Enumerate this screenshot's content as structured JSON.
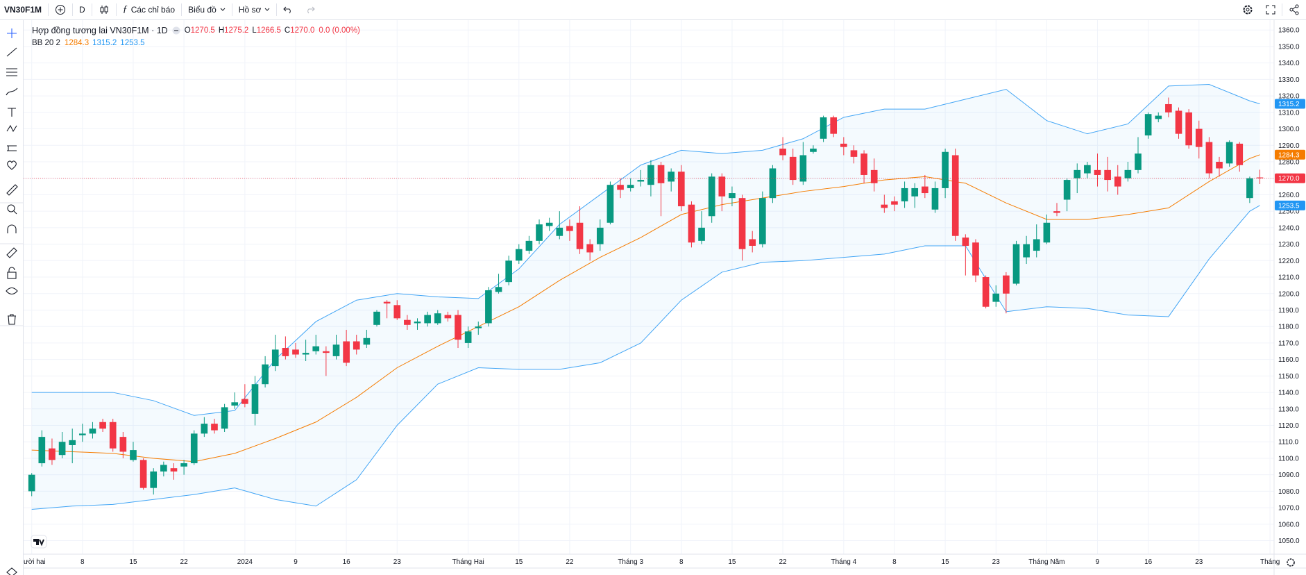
{
  "toolbar": {
    "symbol": "VN30F1M",
    "interval": "D",
    "indicators": "Các chỉ báo",
    "chart_menu": "Biểu đồ",
    "profile_menu": "Hồ sơ"
  },
  "chart_data": {
    "type": "candlestick",
    "title": "Hợp đồng tương lai VN30F1M · 1D",
    "ohlc_legend": [
      {
        "label": "O",
        "value": "1270.5"
      },
      {
        "label": "H",
        "value": "1275.2"
      },
      {
        "label": "L",
        "value": "1266.5"
      },
      {
        "label": "C",
        "value": "1270.0"
      }
    ],
    "change": "0.0 (0.00%)",
    "indicator_label": "BB 20 2",
    "up_color": "#089981",
    "down_color": "#f23645",
    "open": [
      1080,
      1097,
      1106,
      1102,
      1108,
      1114,
      1115,
      1122,
      1122,
      1113,
      1099,
      1099,
      1082,
      1092,
      1094,
      1095,
      1097,
      1115,
      1121,
      1118,
      1132,
      1136,
      1127,
      1145,
      1156,
      1167,
      1166,
      1163,
      1165,
      1165,
      1162,
      1171,
      1171,
      1169,
      1181,
      1195,
      1193,
      1184,
      1182,
      1182,
      1182,
      1187,
      1187,
      1170,
      1179,
      1182,
      1201,
      1207,
      1220,
      1226,
      1232,
      1241,
      1235,
      1241,
      1243,
      1230,
      1230,
      1243,
      1266,
      1264,
      1268,
      1266,
      1278,
      1268,
      1274,
      1254,
      1232,
      1247,
      1271,
      1258,
      1258,
      1233,
      1230,
      1258,
      1288,
      1283,
      1268,
      1286,
      1294,
      1307,
      1291,
      1287,
      1285,
      1275,
      1254,
      1256,
      1256,
      1259,
      1265,
      1251,
      1264,
      1284,
      1234,
      1231,
      1210,
      1195,
      1211,
      1206,
      1222,
      1226,
      1231,
      1250,
      1257,
      1270,
      1273,
      1275,
      1275,
      1271,
      1270,
      1275,
      1296,
      1306,
      1315,
      1311,
      1310,
      1300,
      1292,
      1280,
      1279,
      1291,
      1258,
      1270.5
    ],
    "high": [
      1091,
      1117,
      1112,
      1116,
      1118,
      1121,
      1122,
      1124,
      1124,
      1116,
      1110,
      1100,
      1094,
      1098,
      1097,
      1099,
      1117,
      1125,
      1124,
      1133,
      1140,
      1145,
      1150,
      1162,
      1175,
      1174,
      1170,
      1172,
      1175,
      1168,
      1175,
      1178,
      1175,
      1178,
      1190,
      1196,
      1196,
      1187,
      1185,
      1189,
      1190,
      1189,
      1190,
      1180,
      1183,
      1204,
      1212,
      1223,
      1230,
      1235,
      1245,
      1246,
      1250,
      1245,
      1253,
      1233,
      1245,
      1268,
      1270,
      1270,
      1275,
      1281,
      1280,
      1276,
      1278,
      1256,
      1250,
      1273,
      1273,
      1265,
      1260,
      1238,
      1262,
      1278,
      1295,
      1288,
      1292,
      1290,
      1308,
      1308,
      1295,
      1290,
      1287,
      1282,
      1260,
      1259,
      1268,
      1267,
      1272,
      1268,
      1288,
      1288,
      1236,
      1233,
      1211,
      1205,
      1213,
      1232,
      1235,
      1242,
      1248,
      1255,
      1270,
      1279,
      1280,
      1285,
      1283,
      1278,
      1280,
      1295,
      1310,
      1310,
      1319,
      1313,
      1312,
      1305,
      1295,
      1283,
      1293,
      1292,
      1271,
      1275.2
    ],
    "low": [
      1077,
      1095,
      1096,
      1100,
      1097,
      1110,
      1112,
      1116,
      1104,
      1100,
      1098,
      1081,
      1078,
      1089,
      1087,
      1090,
      1096,
      1113,
      1115,
      1116,
      1130,
      1131,
      1120,
      1143,
      1153,
      1160,
      1161,
      1159,
      1163,
      1150,
      1160,
      1156,
      1163,
      1167,
      1180,
      1185,
      1184,
      1178,
      1178,
      1180,
      1181,
      1183,
      1167,
      1167,
      1175,
      1180,
      1200,
      1205,
      1218,
      1224,
      1230,
      1238,
      1233,
      1232,
      1224,
      1220,
      1226,
      1242,
      1258,
      1262,
      1265,
      1259,
      1247,
      1262,
      1250,
      1228,
      1230,
      1243,
      1250,
      1253,
      1220,
      1225,
      1228,
      1255,
      1281,
      1266,
      1266,
      1285,
      1292,
      1295,
      1284,
      1279,
      1267,
      1262,
      1249,
      1250,
      1252,
      1252,
      1258,
      1249,
      1258,
      1232,
      1211,
      1207,
      1191,
      1192,
      1188,
      1205,
      1218,
      1222,
      1230,
      1247,
      1250,
      1261,
      1270,
      1265,
      1262,
      1260,
      1268,
      1273,
      1294,
      1304,
      1307,
      1294,
      1288,
      1282,
      1270,
      1271,
      1277,
      1274,
      1255,
      1266.5
    ],
    "close": [
      1090,
      1113,
      1099,
      1110,
      1111,
      1115,
      1118,
      1118,
      1106,
      1104,
      1105,
      1082,
      1092,
      1096,
      1092,
      1097,
      1115,
      1121,
      1117,
      1131,
      1134,
      1133,
      1145,
      1157,
      1166,
      1162,
      1163,
      1164,
      1168,
      1164,
      1169,
      1158,
      1166,
      1173,
      1189,
      1194,
      1185,
      1181,
      1183,
      1187,
      1188,
      1185,
      1172,
      1177,
      1180,
      1202,
      1204,
      1220,
      1227,
      1232,
      1242,
      1243,
      1240,
      1238,
      1227,
      1225,
      1240,
      1266,
      1263,
      1266,
      1269,
      1278,
      1267,
      1274,
      1253,
      1231,
      1240,
      1271,
      1259,
      1261,
      1227,
      1229,
      1258,
      1276,
      1284,
      1269,
      1284,
      1288,
      1307,
      1297,
      1289,
      1283,
      1272,
      1267,
      1252,
      1254,
      1264,
      1264,
      1261,
      1264,
      1286,
      1235,
      1229,
      1211,
      1192,
      1200,
      1200,
      1230,
      1230,
      1233,
      1243,
      1249,
      1269,
      1275,
      1278,
      1272,
      1269,
      1265,
      1275,
      1285,
      1309,
      1308,
      1310,
      1297,
      1290,
      1289,
      1273,
      1276,
      1292,
      1278,
      1270,
      1270
    ],
    "series": [
      {
        "color": "#42a5f5",
        "x": [
          0,
          4,
          8,
          12,
          16,
          20,
          24,
          28,
          32,
          36,
          40,
          44,
          48,
          52,
          56,
          60,
          64,
          68,
          72,
          76,
          80,
          84,
          88,
          92,
          96,
          100,
          104,
          108,
          112,
          116,
          120,
          121
        ],
        "values": [
          1140,
          1140,
          1140,
          1135,
          1126,
          1129,
          1160,
          1183,
          1196,
          1200,
          1198,
          1197,
          1215,
          1242,
          1260,
          1278,
          1287,
          1285,
          1287,
          1294,
          1307,
          1312,
          1312,
          1318,
          1324,
          1305,
          1297,
          1303,
          1326,
          1327,
          1317,
          1315.2
        ]
      },
      {
        "color": "#f57c00",
        "x": [
          0,
          4,
          8,
          12,
          16,
          20,
          24,
          28,
          32,
          36,
          40,
          44,
          48,
          52,
          56,
          60,
          64,
          68,
          72,
          76,
          80,
          84,
          88,
          92,
          96,
          100,
          104,
          108,
          112,
          116,
          120,
          121
        ],
        "values": [
          1105,
          1104,
          1103,
          1100,
          1098,
          1103,
          1112,
          1122,
          1137,
          1155,
          1168,
          1180,
          1192,
          1208,
          1222,
          1234,
          1248,
          1254,
          1258,
          1262,
          1265,
          1269,
          1271,
          1267,
          1255,
          1245,
          1245,
          1248,
          1252,
          1268,
          1282,
          1284.3
        ]
      },
      {
        "color": "#42a5f5",
        "x": [
          0,
          4,
          8,
          12,
          16,
          20,
          24,
          28,
          32,
          36,
          40,
          44,
          48,
          52,
          56,
          60,
          64,
          68,
          72,
          76,
          80,
          84,
          88,
          92,
          96,
          100,
          104,
          108,
          112,
          116,
          120,
          121
        ],
        "values": [
          1069,
          1071,
          1072,
          1075,
          1078,
          1082,
          1075,
          1071,
          1087,
          1120,
          1145,
          1155,
          1154,
          1154,
          1158,
          1170,
          1196,
          1213,
          1219,
          1220,
          1222,
          1224,
          1229,
          1229,
          1189,
          1192,
          1191,
          1187,
          1186,
          1221,
          1250,
          1253.5
        ]
      }
    ],
    "band_fill": "#2196f3",
    "y_badges": [
      {
        "value": 1315.2,
        "label": "1315.2",
        "color": "#2196f3"
      },
      {
        "value": 1284.3,
        "label": "1284.3",
        "color": "#f57c00"
      },
      {
        "value": 1270,
        "label": "1270.0",
        "color": "#f23645"
      },
      {
        "value": 1253.5,
        "label": "1253.5",
        "color": "#2196f3"
      }
    ],
    "xlim": [
      -0.8,
      122.4
    ],
    "ylim": [
      1041.8,
      1366
    ],
    "xticks": [
      {
        "value": 0,
        "label": "Mười hai"
      },
      {
        "value": 5,
        "label": "8"
      },
      {
        "value": 10,
        "label": "15"
      },
      {
        "value": 15,
        "label": "22"
      },
      {
        "value": 21,
        "label": "2024"
      },
      {
        "value": 26,
        "label": "9"
      },
      {
        "value": 31,
        "label": "16"
      },
      {
        "value": 36,
        "label": "23"
      },
      {
        "value": 43,
        "label": "Tháng Hai"
      },
      {
        "value": 48,
        "label": "15"
      },
      {
        "value": 53,
        "label": "22"
      },
      {
        "value": 59,
        "label": "Tháng 3"
      },
      {
        "value": 64,
        "label": "8"
      },
      {
        "value": 69,
        "label": "15"
      },
      {
        "value": 74,
        "label": "22"
      },
      {
        "value": 80,
        "label": "Tháng 4"
      },
      {
        "value": 85,
        "label": "8"
      },
      {
        "value": 90,
        "label": "15"
      },
      {
        "value": 95,
        "label": "23"
      },
      {
        "value": 100,
        "label": "Tháng Năm"
      },
      {
        "value": 105,
        "label": "9"
      },
      {
        "value": 110,
        "label": "16"
      },
      {
        "value": 115,
        "label": "23"
      },
      {
        "value": 122,
        "label": "Tháng"
      }
    ],
    "yticks": [
      {
        "value": 1050,
        "label": "1050.0"
      },
      {
        "value": 1060,
        "label": "1060.0"
      },
      {
        "value": 1070,
        "label": "1070.0"
      },
      {
        "value": 1080,
        "label": "1080.0"
      },
      {
        "value": 1090,
        "label": "1090.0"
      },
      {
        "value": 1100,
        "label": "1100.0"
      },
      {
        "value": 1110,
        "label": "1110.0"
      },
      {
        "value": 1120,
        "label": "1120.0"
      },
      {
        "value": 1130,
        "label": "1130.0"
      },
      {
        "value": 1140,
        "label": "1140.0"
      },
      {
        "value": 1150,
        "label": "1150.0"
      },
      {
        "value": 1160,
        "label": "1160.0"
      },
      {
        "value": 1170,
        "label": "1170.0"
      },
      {
        "value": 1180,
        "label": "1180.0"
      },
      {
        "value": 1190,
        "label": "1190.0"
      },
      {
        "value": 1200,
        "label": "1200.0"
      },
      {
        "value": 1210,
        "label": "1210.0"
      },
      {
        "value": 1220,
        "label": "1220.0"
      },
      {
        "value": 1230,
        "label": "1230.0"
      },
      {
        "value": 1240,
        "label": "1240.0"
      },
      {
        "value": 1250,
        "label": "1250.0"
      },
      {
        "value": 1260,
        "label": "1260.0"
      },
      {
        "value": 1270,
        "label": "1270.0"
      },
      {
        "value": 1280,
        "label": "1280.0"
      },
      {
        "value": 1290,
        "label": "1290.0"
      },
      {
        "value": 1300,
        "label": "1300.0"
      },
      {
        "value": 1310,
        "label": "1310.0"
      },
      {
        "value": 1320,
        "label": "1320.0"
      },
      {
        "value": 1330,
        "label": "1330.0"
      },
      {
        "value": 1340,
        "label": "1340.0"
      },
      {
        "value": 1350,
        "label": "1350.0"
      },
      {
        "value": 1360,
        "label": "1360.0"
      }
    ],
    "grid": true
  }
}
